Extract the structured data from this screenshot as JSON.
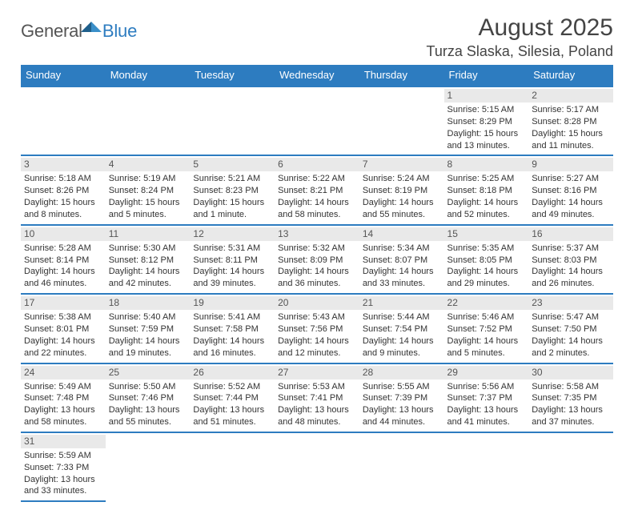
{
  "logo": {
    "general": "General",
    "blue": "Blue"
  },
  "title": "August 2025",
  "location": "Turza Slaska, Silesia, Poland",
  "dow": [
    "Sunday",
    "Monday",
    "Tuesday",
    "Wednesday",
    "Thursday",
    "Friday",
    "Saturday"
  ],
  "colors": {
    "accent": "#2d7cc0",
    "daybg": "#e9e9e9",
    "text": "#333"
  },
  "startDow": 5,
  "days": [
    {
      "n": 1,
      "sr": "5:15 AM",
      "ss": "8:29 PM",
      "dl": "15 hours and 13 minutes."
    },
    {
      "n": 2,
      "sr": "5:17 AM",
      "ss": "8:28 PM",
      "dl": "15 hours and 11 minutes."
    },
    {
      "n": 3,
      "sr": "5:18 AM",
      "ss": "8:26 PM",
      "dl": "15 hours and 8 minutes."
    },
    {
      "n": 4,
      "sr": "5:19 AM",
      "ss": "8:24 PM",
      "dl": "15 hours and 5 minutes."
    },
    {
      "n": 5,
      "sr": "5:21 AM",
      "ss": "8:23 PM",
      "dl": "15 hours and 1 minute."
    },
    {
      "n": 6,
      "sr": "5:22 AM",
      "ss": "8:21 PM",
      "dl": "14 hours and 58 minutes."
    },
    {
      "n": 7,
      "sr": "5:24 AM",
      "ss": "8:19 PM",
      "dl": "14 hours and 55 minutes."
    },
    {
      "n": 8,
      "sr": "5:25 AM",
      "ss": "8:18 PM",
      "dl": "14 hours and 52 minutes."
    },
    {
      "n": 9,
      "sr": "5:27 AM",
      "ss": "8:16 PM",
      "dl": "14 hours and 49 minutes."
    },
    {
      "n": 10,
      "sr": "5:28 AM",
      "ss": "8:14 PM",
      "dl": "14 hours and 46 minutes."
    },
    {
      "n": 11,
      "sr": "5:30 AM",
      "ss": "8:12 PM",
      "dl": "14 hours and 42 minutes."
    },
    {
      "n": 12,
      "sr": "5:31 AM",
      "ss": "8:11 PM",
      "dl": "14 hours and 39 minutes."
    },
    {
      "n": 13,
      "sr": "5:32 AM",
      "ss": "8:09 PM",
      "dl": "14 hours and 36 minutes."
    },
    {
      "n": 14,
      "sr": "5:34 AM",
      "ss": "8:07 PM",
      "dl": "14 hours and 33 minutes."
    },
    {
      "n": 15,
      "sr": "5:35 AM",
      "ss": "8:05 PM",
      "dl": "14 hours and 29 minutes."
    },
    {
      "n": 16,
      "sr": "5:37 AM",
      "ss": "8:03 PM",
      "dl": "14 hours and 26 minutes."
    },
    {
      "n": 17,
      "sr": "5:38 AM",
      "ss": "8:01 PM",
      "dl": "14 hours and 22 minutes."
    },
    {
      "n": 18,
      "sr": "5:40 AM",
      "ss": "7:59 PM",
      "dl": "14 hours and 19 minutes."
    },
    {
      "n": 19,
      "sr": "5:41 AM",
      "ss": "7:58 PM",
      "dl": "14 hours and 16 minutes."
    },
    {
      "n": 20,
      "sr": "5:43 AM",
      "ss": "7:56 PM",
      "dl": "14 hours and 12 minutes."
    },
    {
      "n": 21,
      "sr": "5:44 AM",
      "ss": "7:54 PM",
      "dl": "14 hours and 9 minutes."
    },
    {
      "n": 22,
      "sr": "5:46 AM",
      "ss": "7:52 PM",
      "dl": "14 hours and 5 minutes."
    },
    {
      "n": 23,
      "sr": "5:47 AM",
      "ss": "7:50 PM",
      "dl": "14 hours and 2 minutes."
    },
    {
      "n": 24,
      "sr": "5:49 AM",
      "ss": "7:48 PM",
      "dl": "13 hours and 58 minutes."
    },
    {
      "n": 25,
      "sr": "5:50 AM",
      "ss": "7:46 PM",
      "dl": "13 hours and 55 minutes."
    },
    {
      "n": 26,
      "sr": "5:52 AM",
      "ss": "7:44 PM",
      "dl": "13 hours and 51 minutes."
    },
    {
      "n": 27,
      "sr": "5:53 AM",
      "ss": "7:41 PM",
      "dl": "13 hours and 48 minutes."
    },
    {
      "n": 28,
      "sr": "5:55 AM",
      "ss": "7:39 PM",
      "dl": "13 hours and 44 minutes."
    },
    {
      "n": 29,
      "sr": "5:56 AM",
      "ss": "7:37 PM",
      "dl": "13 hours and 41 minutes."
    },
    {
      "n": 30,
      "sr": "5:58 AM",
      "ss": "7:35 PM",
      "dl": "13 hours and 37 minutes."
    },
    {
      "n": 31,
      "sr": "5:59 AM",
      "ss": "7:33 PM",
      "dl": "13 hours and 33 minutes."
    }
  ],
  "labels": {
    "sunrise": "Sunrise:",
    "sunset": "Sunset:",
    "daylight": "Daylight:"
  }
}
